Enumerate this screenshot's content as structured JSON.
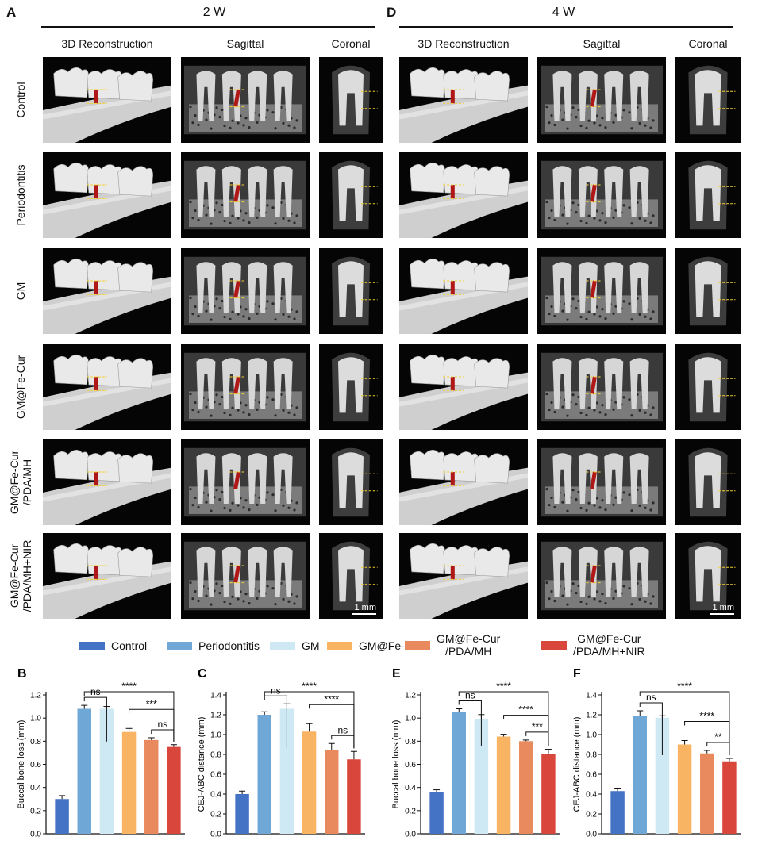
{
  "top": {
    "panelA": "A",
    "panelD": "D",
    "title2w": "2 W",
    "title4w": "4 W",
    "columns": [
      "3D Reconstruction",
      "Sagittal",
      "Coronal"
    ],
    "rows": [
      "Control",
      "Periodontitis",
      "GM",
      "GM@Fe-Cur",
      "GM@Fe-Cur\n/PDA/MH",
      "GM@Fe-Cur\n/PDA/MH+NIR"
    ],
    "scale_label": "1 mm"
  },
  "legend": [
    {
      "label": "Control",
      "color": "#4472c4"
    },
    {
      "label": "Periodontitis",
      "color": "#6fa8d6"
    },
    {
      "label": "GM",
      "color": "#cfe9f4"
    },
    {
      "label": "GM@Fe-Cur",
      "color": "#f9b463"
    },
    {
      "label": "GM@Fe-Cur\n/PDA/MH",
      "color": "#e98a5e"
    },
    {
      "label": "GM@Fe-Cur\n/PDA/MH+NIR",
      "color": "#d9463b"
    }
  ],
  "chart_data": [
    {
      "panel": "B",
      "type": "bar",
      "ylabel": "Buccal bone loss (mm)",
      "ylim": [
        0,
        1.2
      ],
      "yticks": [
        "0.0",
        "0.2",
        "0.4",
        "0.6",
        "0.8",
        "1.0",
        "1.2"
      ],
      "values": [
        0.3,
        1.08,
        1.08,
        0.88,
        0.81,
        0.75
      ],
      "errors": [
        0.03,
        0.03,
        0.02,
        0.03,
        0.02,
        0.02
      ],
      "sig": [
        {
          "from": 1,
          "to": 5,
          "label": "****"
        },
        {
          "from": 1,
          "to": 2,
          "label": "ns"
        },
        {
          "from": 3,
          "to": 5,
          "label": "***"
        },
        {
          "from": 4,
          "to": 5,
          "label": "ns"
        }
      ]
    },
    {
      "panel": "C",
      "type": "bar",
      "ylabel": "CEJ-ABC distance (mm)",
      "ylim": [
        0,
        1.4
      ],
      "yticks": [
        "0.0",
        "0.2",
        "0.4",
        "0.6",
        "0.8",
        "1.0",
        "1.2",
        "1.4"
      ],
      "values": [
        0.4,
        1.2,
        1.26,
        1.03,
        0.84,
        0.75
      ],
      "errors": [
        0.03,
        0.03,
        0.05,
        0.08,
        0.07,
        0.08
      ],
      "sig": [
        {
          "from": 1,
          "to": 5,
          "label": "****"
        },
        {
          "from": 1,
          "to": 2,
          "label": "ns"
        },
        {
          "from": 3,
          "to": 5,
          "label": "****"
        },
        {
          "from": 4,
          "to": 5,
          "label": "ns"
        }
      ]
    },
    {
      "panel": "E",
      "type": "bar",
      "ylabel": "Buccal bone loss (mm)",
      "ylim": [
        0,
        1.2
      ],
      "yticks": [
        "0.0",
        "0.2",
        "0.4",
        "0.6",
        "0.8",
        "1.0",
        "1.2"
      ],
      "values": [
        0.36,
        1.05,
        0.99,
        0.84,
        0.8,
        0.69
      ],
      "errors": [
        0.02,
        0.03,
        0.04,
        0.02,
        0.01,
        0.04
      ],
      "sig": [
        {
          "from": 1,
          "to": 5,
          "label": "****"
        },
        {
          "from": 1,
          "to": 2,
          "label": "ns"
        },
        {
          "from": 3,
          "to": 5,
          "label": "****"
        },
        {
          "from": 4,
          "to": 5,
          "label": "***"
        }
      ]
    },
    {
      "panel": "F",
      "type": "bar",
      "ylabel": "CEJ-ABC distance (mm)",
      "ylim": [
        0,
        1.4
      ],
      "yticks": [
        "0.0",
        "0.2",
        "0.4",
        "0.6",
        "0.8",
        "1.0",
        "1.2",
        "1.4"
      ],
      "values": [
        0.43,
        1.19,
        1.17,
        0.9,
        0.81,
        0.73
      ],
      "errors": [
        0.03,
        0.05,
        0.02,
        0.04,
        0.03,
        0.03
      ],
      "sig": [
        {
          "from": 1,
          "to": 5,
          "label": "****"
        },
        {
          "from": 1,
          "to": 2,
          "label": "ns"
        },
        {
          "from": 3,
          "to": 5,
          "label": "****"
        },
        {
          "from": 4,
          "to": 5,
          "label": "**"
        }
      ]
    }
  ]
}
